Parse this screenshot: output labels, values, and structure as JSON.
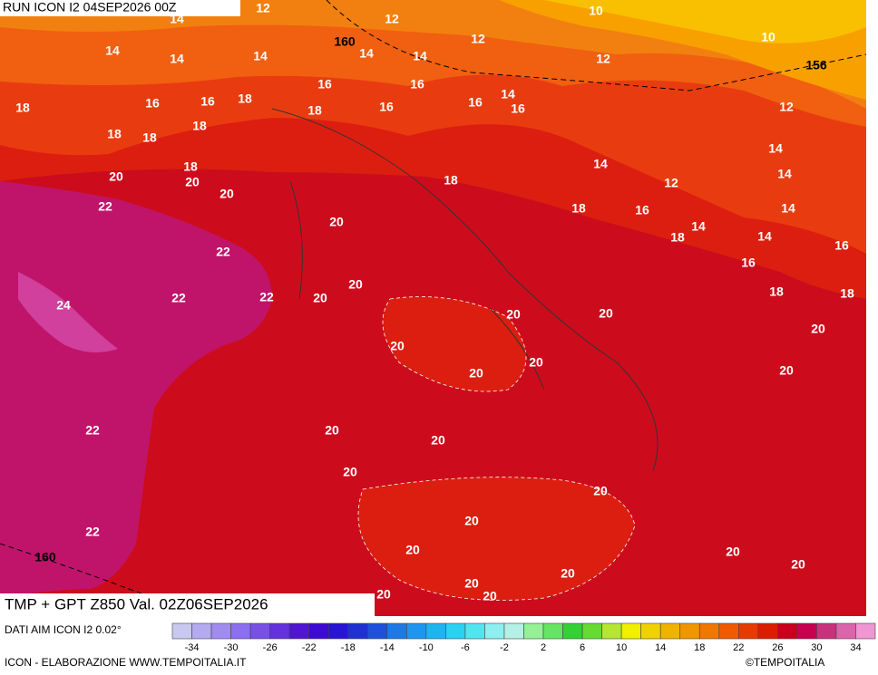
{
  "header": {
    "run": "RUN ICON I2 04SEP2026 00Z"
  },
  "map": {
    "contour_labels": [
      "14",
      "12",
      "12",
      "10",
      "10",
      "160",
      "12",
      "14",
      "14",
      "14",
      "14",
      "14",
      "12",
      "156",
      "16",
      "16",
      "14",
      "16",
      "16",
      "18",
      "16",
      "16",
      "16",
      "18",
      "18",
      "12",
      "18",
      "18",
      "18",
      "14",
      "18",
      "20",
      "20",
      "14",
      "14",
      "18",
      "12",
      "20",
      "22",
      "18",
      "16",
      "14",
      "20",
      "14",
      "18",
      "14",
      "16",
      "22",
      "16",
      "20",
      "18",
      "18",
      "22",
      "22",
      "20",
      "24",
      "20",
      "20",
      "20",
      "20",
      "20",
      "20",
      "20",
      "22",
      "20",
      "20",
      "20",
      "20",
      "20",
      "22",
      "20",
      "20",
      "160",
      "20",
      "20",
      "20",
      "20",
      "20"
    ]
  },
  "footer": {
    "title": "TMP + GPT Z850 Val. 02Z06SEP2026",
    "source": "DATI AIM ICON I2 0.02°",
    "credit": "ICON - ELABORAZIONE WWW.TEMPOITALIA.IT",
    "copyright": "©TEMPOITALIA"
  },
  "legend": {
    "ticks": [
      "-34",
      "-30",
      "-26",
      "-22",
      "-18",
      "-14",
      "-10",
      "-6",
      "-2",
      "2",
      "6",
      "10",
      "14",
      "18",
      "22",
      "26",
      "30",
      "34"
    ]
  }
}
